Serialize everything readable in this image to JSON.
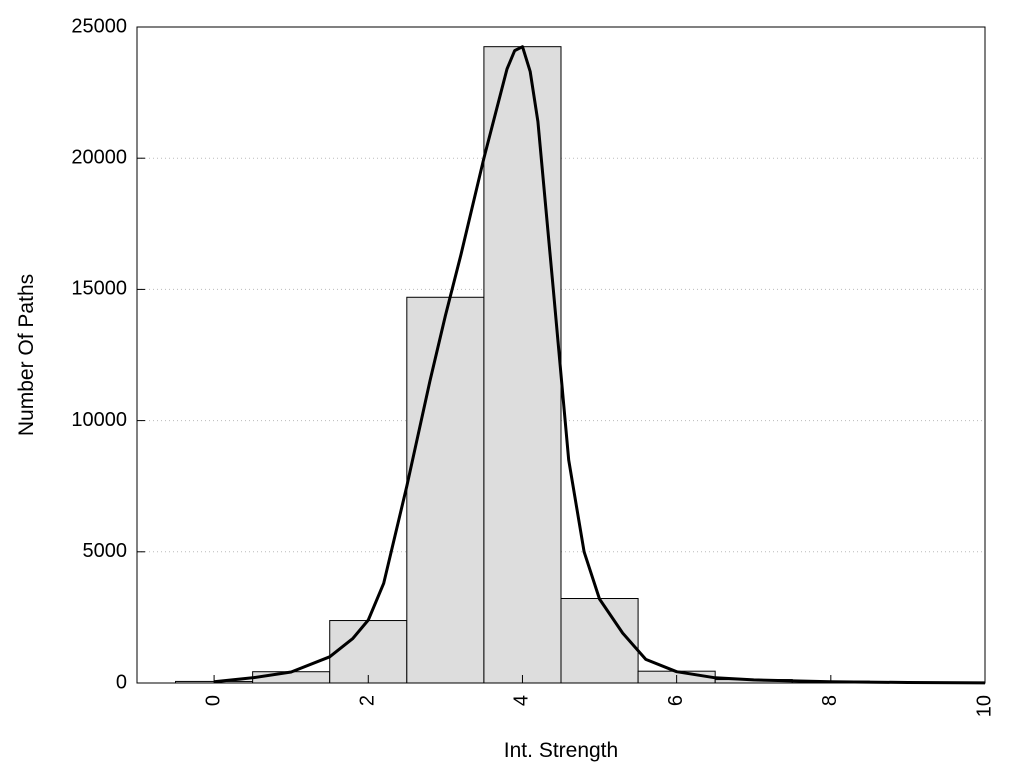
{
  "chart_data": {
    "type": "bar",
    "title": "",
    "xlabel": "Int. Strength",
    "ylabel": "Number Of Paths",
    "xlim": [
      -1,
      10
    ],
    "ylim": [
      0,
      25000
    ],
    "x_ticks": [
      0,
      2,
      4,
      6,
      8,
      10
    ],
    "y_ticks": [
      0,
      5000,
      10000,
      15000,
      20000,
      25000
    ],
    "grid": "horizontal-dotted",
    "bar_color": "#dddddd",
    "line_color": "#000000",
    "bars": [
      {
        "x": 0,
        "value": 60
      },
      {
        "x": 1,
        "value": 430
      },
      {
        "x": 2,
        "value": 2380
      },
      {
        "x": 3,
        "value": 14700
      },
      {
        "x": 4,
        "value": 24250
      },
      {
        "x": 5,
        "value": 3220
      },
      {
        "x": 6,
        "value": 450
      },
      {
        "x": 7,
        "value": 130
      },
      {
        "x": 8,
        "value": 70
      },
      {
        "x": 9,
        "value": 20
      }
    ],
    "series": [
      {
        "type": "line",
        "points": [
          [
            0,
            50
          ],
          [
            0.5,
            200
          ],
          [
            1,
            420
          ],
          [
            1.5,
            1000
          ],
          [
            1.8,
            1700
          ],
          [
            2,
            2400
          ],
          [
            2.2,
            3800
          ],
          [
            2.5,
            7500
          ],
          [
            2.8,
            11500
          ],
          [
            3,
            14000
          ],
          [
            3.2,
            16300
          ],
          [
            3.5,
            20000
          ],
          [
            3.8,
            23400
          ],
          [
            3.9,
            24100
          ],
          [
            4,
            24250
          ],
          [
            4.1,
            23300
          ],
          [
            4.2,
            21400
          ],
          [
            4.4,
            15000
          ],
          [
            4.6,
            8500
          ],
          [
            4.8,
            5000
          ],
          [
            5,
            3200
          ],
          [
            5.3,
            1900
          ],
          [
            5.6,
            900
          ],
          [
            6,
            430
          ],
          [
            6.5,
            200
          ],
          [
            7,
            120
          ],
          [
            8,
            50
          ],
          [
            9,
            20
          ],
          [
            10,
            5
          ]
        ]
      }
    ]
  }
}
